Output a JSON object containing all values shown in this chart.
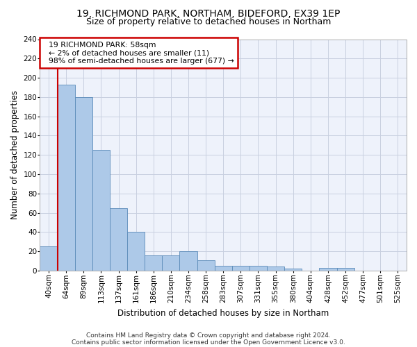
{
  "title1": "19, RICHMOND PARK, NORTHAM, BIDEFORD, EX39 1EP",
  "title2": "Size of property relative to detached houses in Northam",
  "xlabel": "Distribution of detached houses by size in Northam",
  "ylabel": "Number of detached properties",
  "bin_labels": [
    "40sqm",
    "64sqm",
    "89sqm",
    "113sqm",
    "137sqm",
    "161sqm",
    "186sqm",
    "210sqm",
    "234sqm",
    "258sqm",
    "283sqm",
    "307sqm",
    "331sqm",
    "355sqm",
    "380sqm",
    "404sqm",
    "428sqm",
    "452sqm",
    "477sqm",
    "501sqm",
    "525sqm"
  ],
  "bar_values": [
    25,
    193,
    180,
    125,
    65,
    40,
    16,
    16,
    20,
    11,
    5,
    5,
    5,
    4,
    2,
    0,
    3,
    3,
    0,
    0,
    0
  ],
  "bar_color": "#adc9e8",
  "bar_edge_color": "#5a8ab8",
  "highlight_color": "#cc0000",
  "annotation_text": "  19 RICHMOND PARK: 58sqm\n  ← 2% of detached houses are smaller (11)\n  98% of semi-detached houses are larger (677) →",
  "annotation_box_color": "#ffffff",
  "annotation_box_edge": "#cc0000",
  "ylim": [
    0,
    240
  ],
  "yticks": [
    0,
    20,
    40,
    60,
    80,
    100,
    120,
    140,
    160,
    180,
    200,
    220,
    240
  ],
  "footer1": "Contains HM Land Registry data © Crown copyright and database right 2024.",
  "footer2": "Contains public sector information licensed under the Open Government Licence v3.0.",
  "bg_color": "#eef2fb",
  "grid_color": "#c8cfe0",
  "title1_fontsize": 10,
  "title2_fontsize": 9,
  "xlabel_fontsize": 8.5,
  "ylabel_fontsize": 8.5,
  "tick_fontsize": 7.5,
  "footer_fontsize": 6.5
}
